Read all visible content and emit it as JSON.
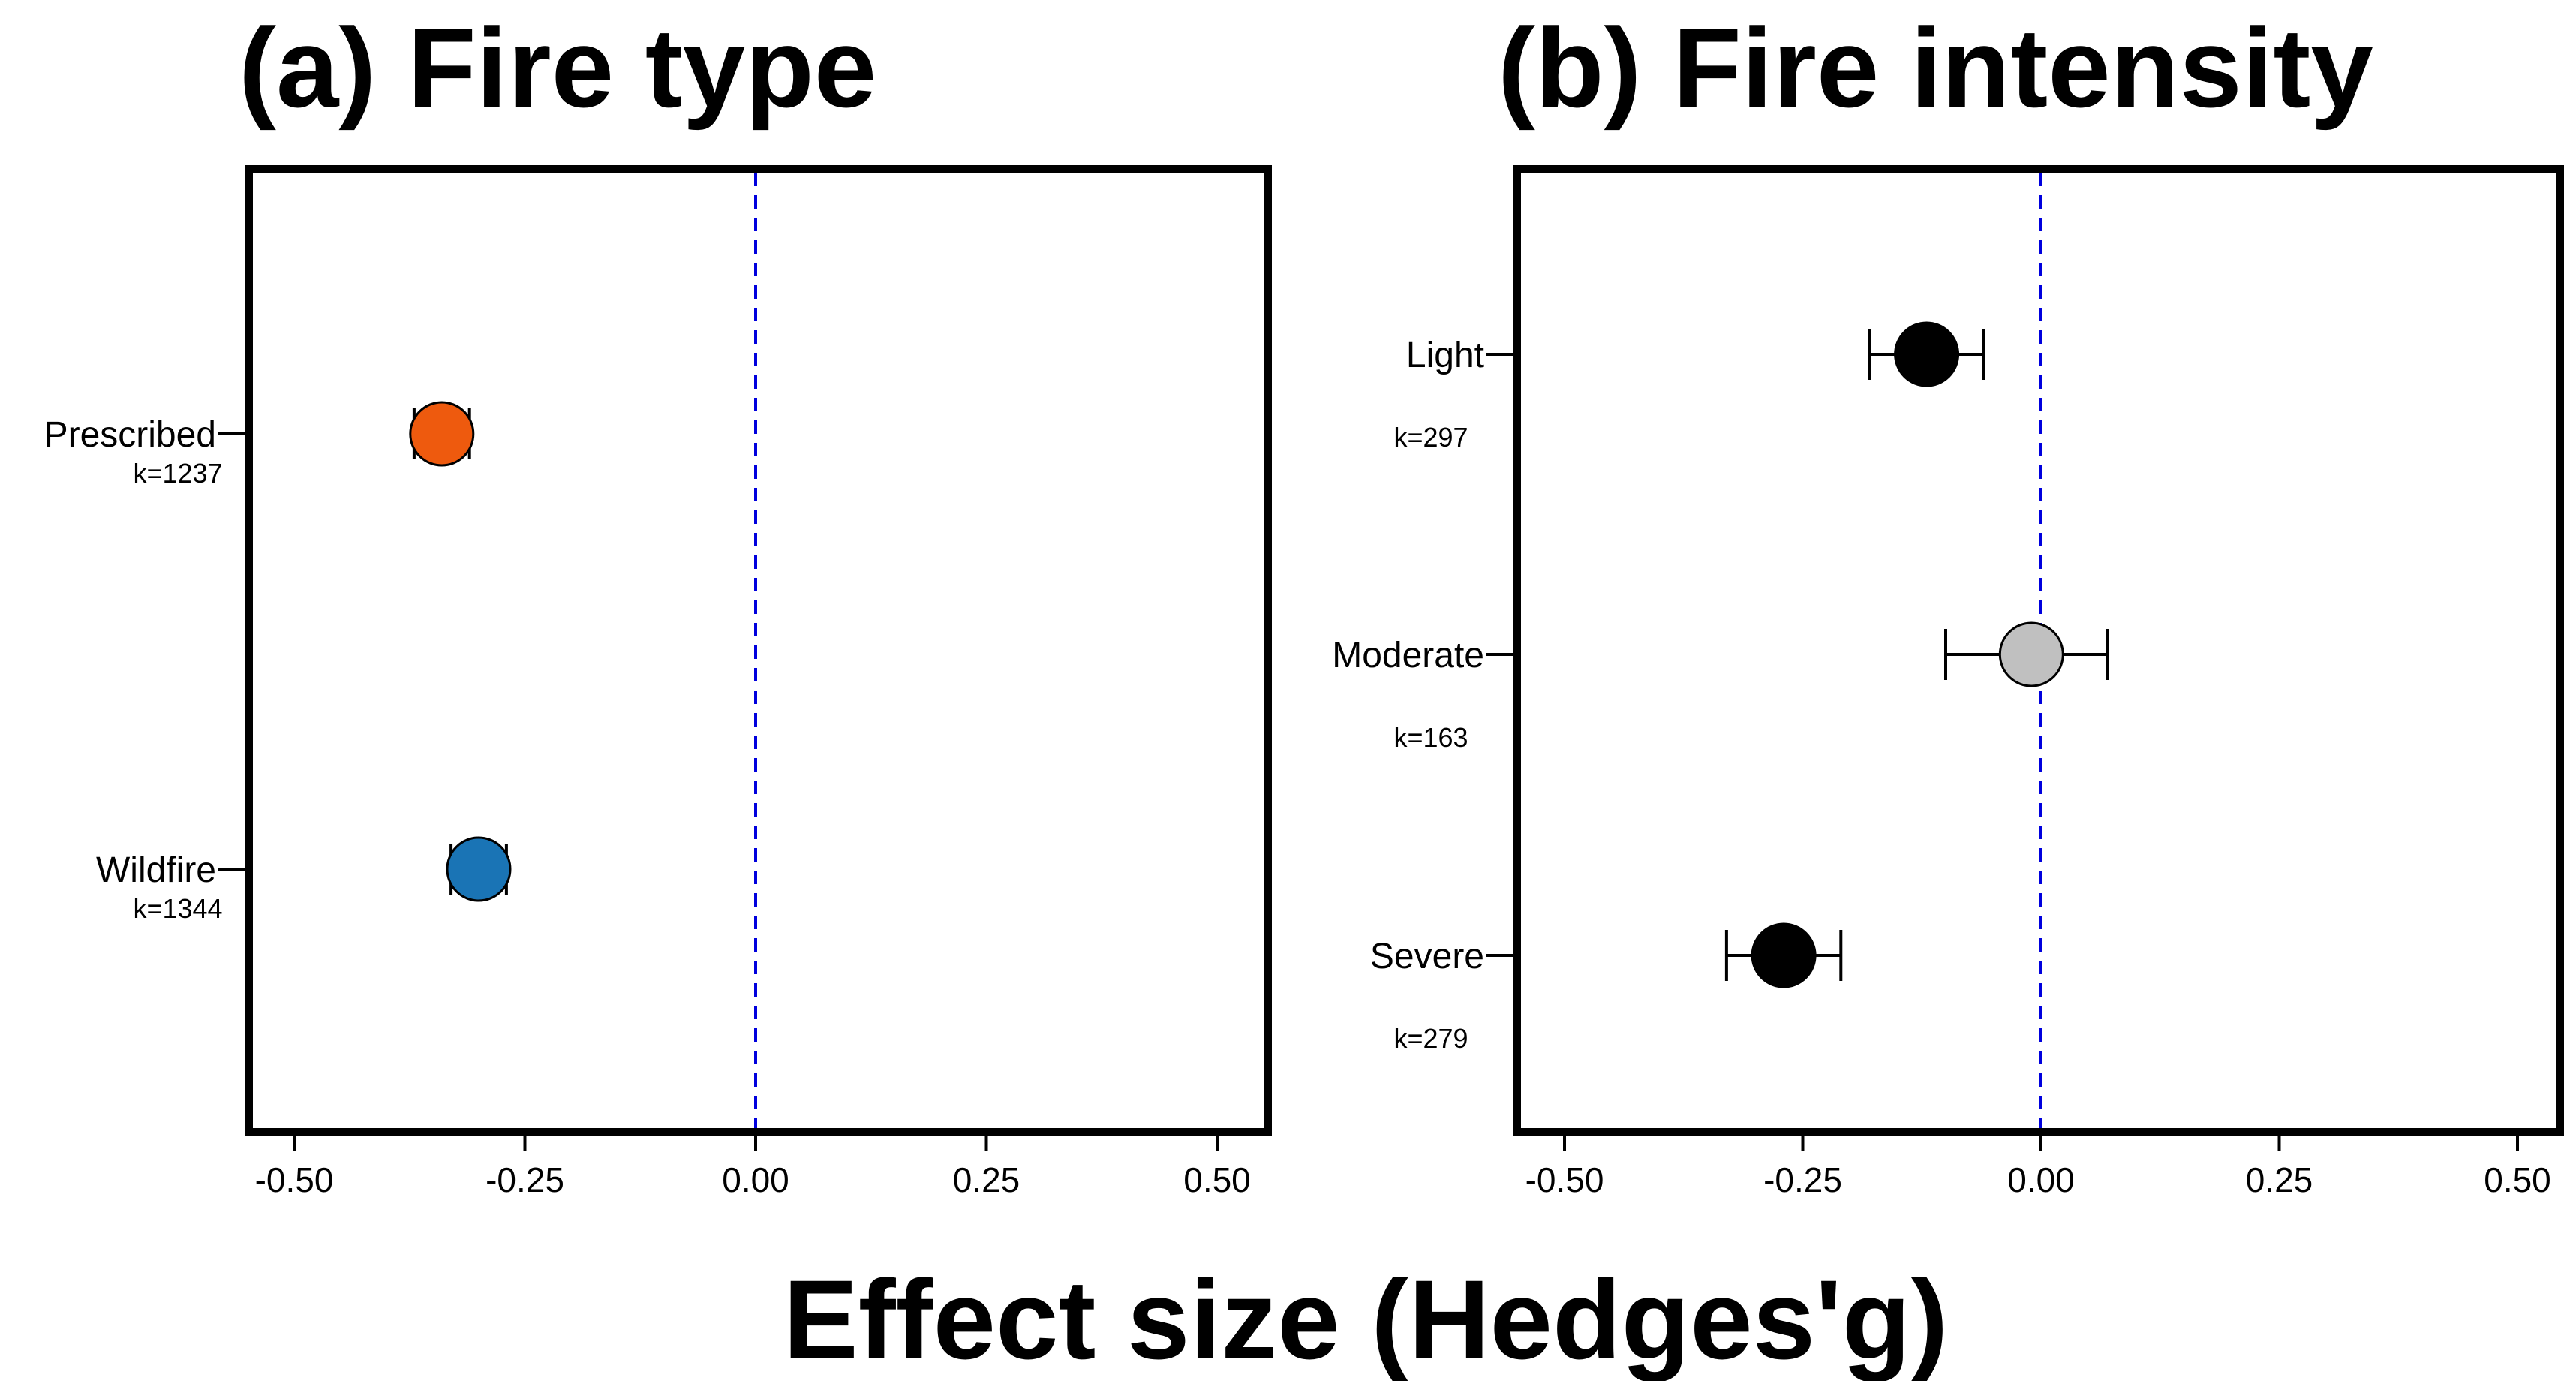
{
  "figure": {
    "xlabel": "Effect size (Hedges'g)"
  },
  "chart_data": [
    {
      "type": "scatter",
      "subtype": "forest-plot",
      "title": "(a) Fire type",
      "xlabel": "Effect size (Hedges'g)",
      "xlim": [
        -0.55,
        0.55
      ],
      "xticks": [
        -0.5,
        -0.25,
        0.0,
        0.25,
        0.5
      ],
      "xtick_labels": [
        "-0.50",
        "-0.25",
        "0.00",
        "0.25",
        "0.50"
      ],
      "reference_line": 0,
      "reference_color": "#0000dd",
      "points": [
        {
          "label": "Prescribed",
          "k": "k=1237",
          "estimate": -0.34,
          "ci_low": -0.37,
          "ci_high": -0.31,
          "color": "#ee5a0e"
        },
        {
          "label": "Wildfire",
          "k": "k=1344",
          "estimate": -0.3,
          "ci_low": -0.33,
          "ci_high": -0.27,
          "color": "#1a74b5"
        }
      ]
    },
    {
      "type": "scatter",
      "subtype": "forest-plot",
      "title": "(b) Fire intensity",
      "xlabel": "Effect size (Hedges'g)",
      "xlim": [
        -0.55,
        0.55
      ],
      "xticks": [
        -0.5,
        -0.25,
        0.0,
        0.25,
        0.5
      ],
      "xtick_labels": [
        "-0.50",
        "-0.25",
        "0.00",
        "0.25",
        "0.50"
      ],
      "reference_line": 0,
      "reference_color": "#0000dd",
      "points": [
        {
          "label": "Light",
          "k": "k=297",
          "estimate": -0.12,
          "ci_low": -0.18,
          "ci_high": -0.06,
          "color": "#000000"
        },
        {
          "label": "Moderate",
          "k": "k=163",
          "estimate": -0.01,
          "ci_low": -0.1,
          "ci_high": 0.07,
          "color": "#c0c0c0"
        },
        {
          "label": "Severe",
          "k": "k=279",
          "estimate": -0.27,
          "ci_low": -0.33,
          "ci_high": -0.21,
          "color": "#000000"
        }
      ]
    }
  ]
}
